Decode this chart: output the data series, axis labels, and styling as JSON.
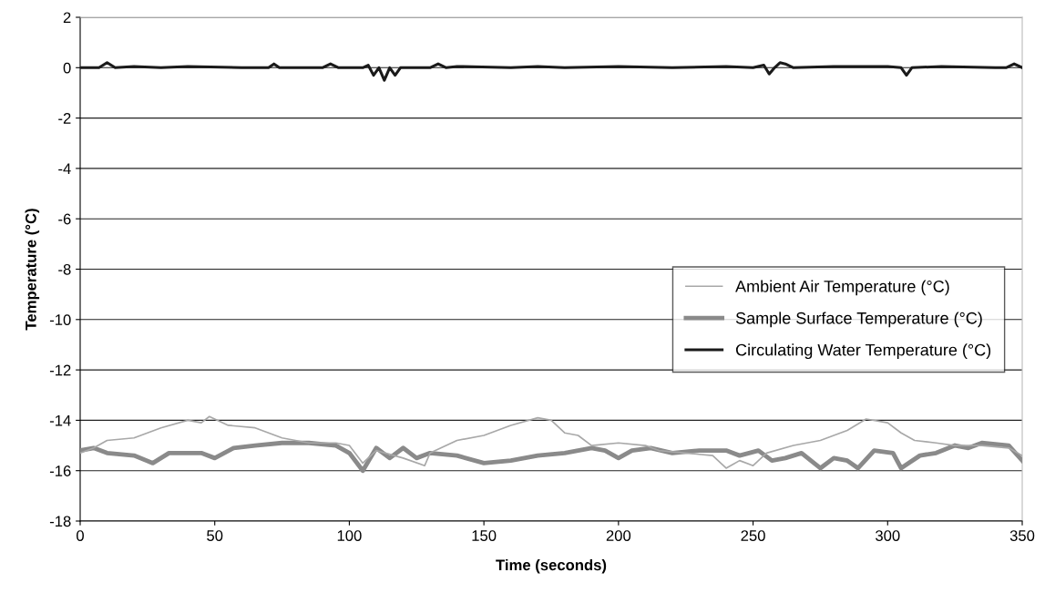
{
  "chart_data": {
    "type": "line",
    "xlabel": "Time (seconds)",
    "ylabel": "Temperature (°C)",
    "xlim": [
      0,
      350
    ],
    "xticks": [
      0,
      50,
      100,
      150,
      200,
      250,
      300,
      350
    ],
    "ylim": [
      -18,
      2
    ],
    "yticks": [
      -18,
      -16,
      -14,
      -12,
      -10,
      -8,
      -6,
      -4,
      -2,
      0,
      2
    ],
    "grid": "y",
    "legend": "right",
    "marker": "none",
    "line_style": "solid",
    "series": [
      {
        "name": "Ambient Air Temperature (°C)",
        "color": "#a8a8a8",
        "x": [
          0,
          5,
          10,
          20,
          30,
          40,
          45,
          48,
          55,
          65,
          75,
          85,
          95,
          100,
          105,
          110,
          120,
          128,
          130,
          140,
          150,
          160,
          170,
          175,
          180,
          185,
          190,
          200,
          210,
          215,
          225,
          235,
          240,
          245,
          250,
          255,
          265,
          275,
          285,
          292,
          300,
          305,
          310,
          318,
          325,
          335,
          345,
          350
        ],
        "values": [
          -15.3,
          -15.1,
          -14.8,
          -14.7,
          -14.3,
          -14.0,
          -14.1,
          -13.85,
          -14.2,
          -14.3,
          -14.7,
          -14.9,
          -14.9,
          -15.0,
          -15.7,
          -15.2,
          -15.5,
          -15.8,
          -15.3,
          -14.8,
          -14.6,
          -14.2,
          -13.9,
          -14.0,
          -14.5,
          -14.6,
          -15.0,
          -14.9,
          -15.0,
          -15.2,
          -15.3,
          -15.4,
          -15.9,
          -15.6,
          -15.8,
          -15.3,
          -15.0,
          -14.8,
          -14.4,
          -13.95,
          -14.1,
          -14.5,
          -14.8,
          -14.9,
          -15.0,
          -15.0,
          -15.1,
          -15.4
        ]
      },
      {
        "name": "Sample Surface Temperature (°C)",
        "color": "#8a8a8a",
        "x": [
          0,
          5,
          10,
          20,
          27,
          33,
          45,
          50,
          57,
          65,
          75,
          85,
          95,
          100,
          105,
          110,
          115,
          120,
          125,
          130,
          140,
          150,
          160,
          170,
          180,
          190,
          195,
          200,
          205,
          212,
          220,
          230,
          240,
          245,
          252,
          257,
          262,
          268,
          275,
          280,
          285,
          289,
          295,
          302,
          305,
          312,
          318,
          325,
          330,
          335,
          345,
          350
        ],
        "values": [
          -15.2,
          -15.1,
          -15.3,
          -15.4,
          -15.7,
          -15.3,
          -15.3,
          -15.5,
          -15.1,
          -15.0,
          -14.9,
          -14.9,
          -15.0,
          -15.3,
          -16.0,
          -15.1,
          -15.5,
          -15.1,
          -15.5,
          -15.3,
          -15.4,
          -15.7,
          -15.6,
          -15.4,
          -15.3,
          -15.1,
          -15.2,
          -15.5,
          -15.2,
          -15.1,
          -15.3,
          -15.2,
          -15.2,
          -15.4,
          -15.2,
          -15.6,
          -15.5,
          -15.3,
          -15.9,
          -15.5,
          -15.6,
          -15.9,
          -15.2,
          -15.3,
          -15.9,
          -15.4,
          -15.3,
          -15.0,
          -15.1,
          -14.9,
          -15.0,
          -15.6
        ]
      },
      {
        "name": "Circulating Water Temperature (°C)",
        "color": "#1a1a1a",
        "x": [
          0,
          7,
          10,
          13,
          20,
          30,
          40,
          60,
          70,
          72,
          74,
          90,
          93,
          96,
          105,
          107,
          109,
          111,
          113,
          115,
          117,
          119,
          130,
          133,
          136,
          140,
          160,
          170,
          180,
          200,
          220,
          240,
          250,
          254,
          256,
          258,
          260,
          262,
          265,
          280,
          300,
          305,
          307,
          309,
          320,
          340,
          344,
          347,
          350
        ],
        "values": [
          0,
          0,
          0.2,
          0,
          0.05,
          0,
          0.05,
          0,
          0,
          0.15,
          0,
          0,
          0.15,
          0,
          0,
          0.1,
          -0.3,
          0,
          -0.5,
          0,
          -0.3,
          0,
          0,
          0.15,
          0,
          0.05,
          0,
          0.05,
          0,
          0.05,
          0,
          0.05,
          0,
          0.1,
          -0.25,
          0,
          0.2,
          0.15,
          0,
          0.05,
          0.05,
          0,
          -0.3,
          0,
          0.05,
          0,
          0,
          0.15,
          0
        ]
      }
    ]
  }
}
